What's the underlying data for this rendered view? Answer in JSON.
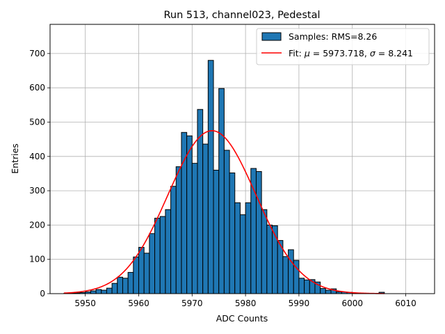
{
  "chart_data": {
    "type": "bar",
    "title": "Run 513, channel023, Pedestal",
    "xlabel": "ADC Counts",
    "ylabel": "Entries",
    "xlim": [
      5943.4,
      6015.4
    ],
    "ylim": [
      0,
      785
    ],
    "grid": true,
    "legend_position": "top-right",
    "x_ticks": [
      5950,
      5960,
      5970,
      5980,
      5990,
      6000,
      6010
    ],
    "y_ticks": [
      0,
      100,
      200,
      300,
      400,
      500,
      600,
      700
    ],
    "histogram": {
      "name": "Samples: RMS=8.26",
      "bin_width": 1,
      "bin_starts": [
        5946,
        5947,
        5948,
        5949,
        5950,
        5951,
        5952,
        5953,
        5954,
        5955,
        5956,
        5957,
        5958,
        5959,
        5960,
        5961,
        5962,
        5963,
        5964,
        5965,
        5966,
        5967,
        5968,
        5969,
        5970,
        5971,
        5972,
        5973,
        5974,
        5975,
        5976,
        5977,
        5978,
        5979,
        5980,
        5981,
        5982,
        5983,
        5984,
        5985,
        5986,
        5987,
        5988,
        5989,
        5990,
        5991,
        5992,
        5993,
        5994,
        5995,
        5996,
        5997,
        5998,
        5999,
        6000,
        6001,
        6002,
        6003,
        6004,
        6005
      ],
      "counts": [
        1,
        1,
        2,
        3,
        5,
        8,
        12,
        10,
        16,
        30,
        48,
        45,
        62,
        107,
        135,
        118,
        175,
        220,
        225,
        245,
        313,
        370,
        470,
        460,
        380,
        537,
        436,
        680,
        360,
        598,
        418,
        352,
        265,
        230,
        265,
        365,
        356,
        245,
        200,
        198,
        155,
        108,
        128,
        97,
        45,
        40,
        41,
        34,
        15,
        10,
        14,
        5,
        5,
        4,
        2,
        1,
        1,
        1,
        1,
        4
      ],
      "color": "#1f77b4",
      "edgecolor": "#000000"
    },
    "fit": {
      "name_prefix": "Fit: ",
      "mu_symbol": "μ",
      "sigma_symbol": "σ",
      "mu": 5973.718,
      "sigma": 8.241,
      "mu_text": "5973.718",
      "sigma_text": "8.241",
      "amplitude": 475,
      "x_range": [
        5946,
        6006
      ],
      "color": "#ff0000"
    }
  }
}
